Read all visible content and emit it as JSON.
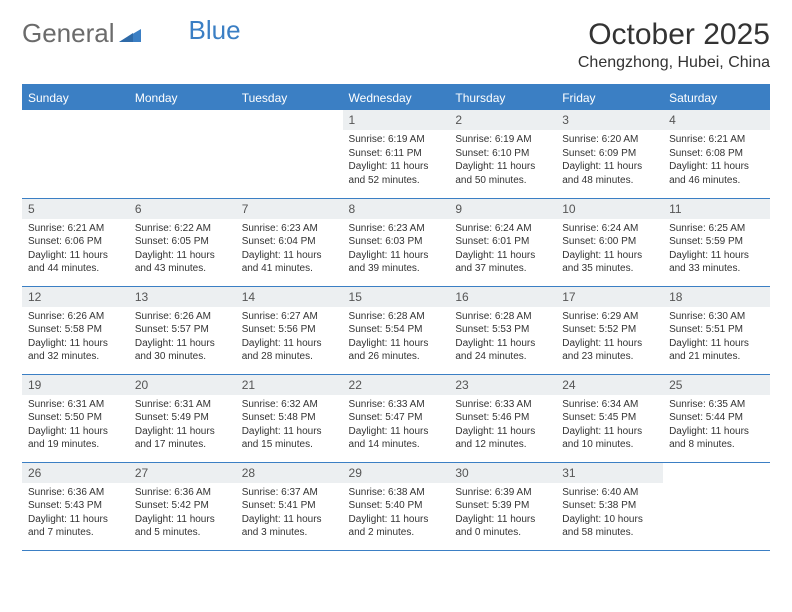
{
  "logo": {
    "word1": "General",
    "word2": "Blue"
  },
  "title": "October 2025",
  "location": "Chengzhong, Hubei, China",
  "colors": {
    "accent": "#3b7fc4",
    "dayHeaderBg": "#eceff1",
    "text": "#333333",
    "background": "#ffffff"
  },
  "dayNames": [
    "Sunday",
    "Monday",
    "Tuesday",
    "Wednesday",
    "Thursday",
    "Friday",
    "Saturday"
  ],
  "weeks": [
    [
      null,
      null,
      null,
      {
        "n": "1",
        "sr": "Sunrise: 6:19 AM",
        "ss": "Sunset: 6:11 PM",
        "dl": "Daylight: 11 hours and 52 minutes."
      },
      {
        "n": "2",
        "sr": "Sunrise: 6:19 AM",
        "ss": "Sunset: 6:10 PM",
        "dl": "Daylight: 11 hours and 50 minutes."
      },
      {
        "n": "3",
        "sr": "Sunrise: 6:20 AM",
        "ss": "Sunset: 6:09 PM",
        "dl": "Daylight: 11 hours and 48 minutes."
      },
      {
        "n": "4",
        "sr": "Sunrise: 6:21 AM",
        "ss": "Sunset: 6:08 PM",
        "dl": "Daylight: 11 hours and 46 minutes."
      }
    ],
    [
      {
        "n": "5",
        "sr": "Sunrise: 6:21 AM",
        "ss": "Sunset: 6:06 PM",
        "dl": "Daylight: 11 hours and 44 minutes."
      },
      {
        "n": "6",
        "sr": "Sunrise: 6:22 AM",
        "ss": "Sunset: 6:05 PM",
        "dl": "Daylight: 11 hours and 43 minutes."
      },
      {
        "n": "7",
        "sr": "Sunrise: 6:23 AM",
        "ss": "Sunset: 6:04 PM",
        "dl": "Daylight: 11 hours and 41 minutes."
      },
      {
        "n": "8",
        "sr": "Sunrise: 6:23 AM",
        "ss": "Sunset: 6:03 PM",
        "dl": "Daylight: 11 hours and 39 minutes."
      },
      {
        "n": "9",
        "sr": "Sunrise: 6:24 AM",
        "ss": "Sunset: 6:01 PM",
        "dl": "Daylight: 11 hours and 37 minutes."
      },
      {
        "n": "10",
        "sr": "Sunrise: 6:24 AM",
        "ss": "Sunset: 6:00 PM",
        "dl": "Daylight: 11 hours and 35 minutes."
      },
      {
        "n": "11",
        "sr": "Sunrise: 6:25 AM",
        "ss": "Sunset: 5:59 PM",
        "dl": "Daylight: 11 hours and 33 minutes."
      }
    ],
    [
      {
        "n": "12",
        "sr": "Sunrise: 6:26 AM",
        "ss": "Sunset: 5:58 PM",
        "dl": "Daylight: 11 hours and 32 minutes."
      },
      {
        "n": "13",
        "sr": "Sunrise: 6:26 AM",
        "ss": "Sunset: 5:57 PM",
        "dl": "Daylight: 11 hours and 30 minutes."
      },
      {
        "n": "14",
        "sr": "Sunrise: 6:27 AM",
        "ss": "Sunset: 5:56 PM",
        "dl": "Daylight: 11 hours and 28 minutes."
      },
      {
        "n": "15",
        "sr": "Sunrise: 6:28 AM",
        "ss": "Sunset: 5:54 PM",
        "dl": "Daylight: 11 hours and 26 minutes."
      },
      {
        "n": "16",
        "sr": "Sunrise: 6:28 AM",
        "ss": "Sunset: 5:53 PM",
        "dl": "Daylight: 11 hours and 24 minutes."
      },
      {
        "n": "17",
        "sr": "Sunrise: 6:29 AM",
        "ss": "Sunset: 5:52 PM",
        "dl": "Daylight: 11 hours and 23 minutes."
      },
      {
        "n": "18",
        "sr": "Sunrise: 6:30 AM",
        "ss": "Sunset: 5:51 PM",
        "dl": "Daylight: 11 hours and 21 minutes."
      }
    ],
    [
      {
        "n": "19",
        "sr": "Sunrise: 6:31 AM",
        "ss": "Sunset: 5:50 PM",
        "dl": "Daylight: 11 hours and 19 minutes."
      },
      {
        "n": "20",
        "sr": "Sunrise: 6:31 AM",
        "ss": "Sunset: 5:49 PM",
        "dl": "Daylight: 11 hours and 17 minutes."
      },
      {
        "n": "21",
        "sr": "Sunrise: 6:32 AM",
        "ss": "Sunset: 5:48 PM",
        "dl": "Daylight: 11 hours and 15 minutes."
      },
      {
        "n": "22",
        "sr": "Sunrise: 6:33 AM",
        "ss": "Sunset: 5:47 PM",
        "dl": "Daylight: 11 hours and 14 minutes."
      },
      {
        "n": "23",
        "sr": "Sunrise: 6:33 AM",
        "ss": "Sunset: 5:46 PM",
        "dl": "Daylight: 11 hours and 12 minutes."
      },
      {
        "n": "24",
        "sr": "Sunrise: 6:34 AM",
        "ss": "Sunset: 5:45 PM",
        "dl": "Daylight: 11 hours and 10 minutes."
      },
      {
        "n": "25",
        "sr": "Sunrise: 6:35 AM",
        "ss": "Sunset: 5:44 PM",
        "dl": "Daylight: 11 hours and 8 minutes."
      }
    ],
    [
      {
        "n": "26",
        "sr": "Sunrise: 6:36 AM",
        "ss": "Sunset: 5:43 PM",
        "dl": "Daylight: 11 hours and 7 minutes."
      },
      {
        "n": "27",
        "sr": "Sunrise: 6:36 AM",
        "ss": "Sunset: 5:42 PM",
        "dl": "Daylight: 11 hours and 5 minutes."
      },
      {
        "n": "28",
        "sr": "Sunrise: 6:37 AM",
        "ss": "Sunset: 5:41 PM",
        "dl": "Daylight: 11 hours and 3 minutes."
      },
      {
        "n": "29",
        "sr": "Sunrise: 6:38 AM",
        "ss": "Sunset: 5:40 PM",
        "dl": "Daylight: 11 hours and 2 minutes."
      },
      {
        "n": "30",
        "sr": "Sunrise: 6:39 AM",
        "ss": "Sunset: 5:39 PM",
        "dl": "Daylight: 11 hours and 0 minutes."
      },
      {
        "n": "31",
        "sr": "Sunrise: 6:40 AM",
        "ss": "Sunset: 5:38 PM",
        "dl": "Daylight: 10 hours and 58 minutes."
      },
      null
    ]
  ]
}
